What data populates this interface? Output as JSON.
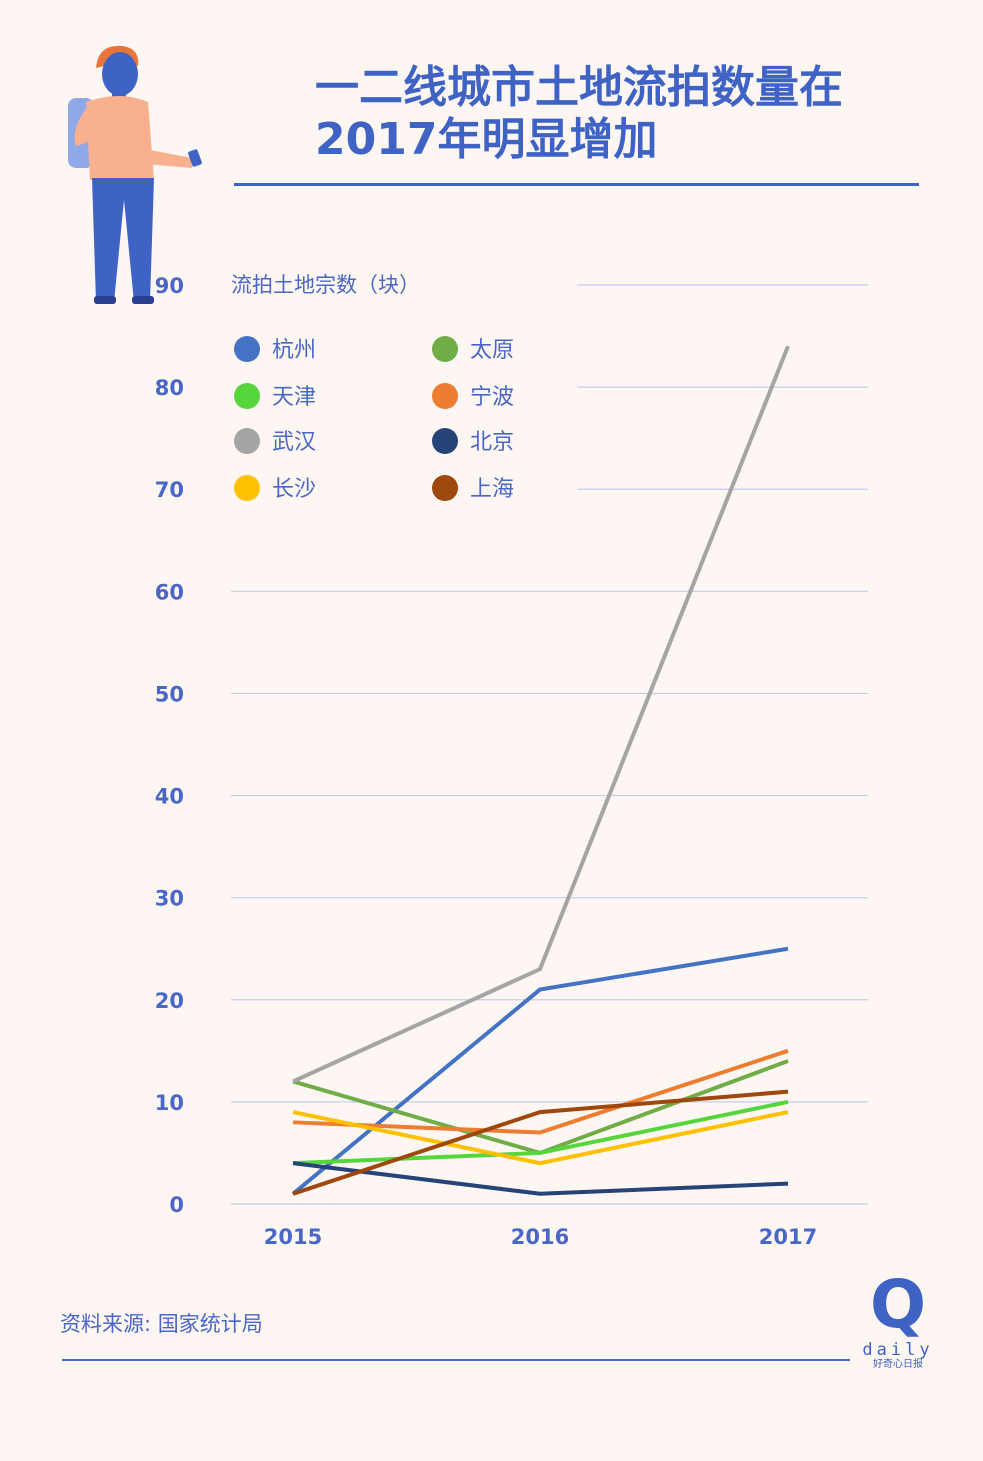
{
  "title": "一二线城市土地流拍数量在\n2017年明显增加",
  "source": "资料来源: 国家统计局",
  "logo": {
    "q": "Q",
    "word": "daily",
    "sub": "好奇心日报"
  },
  "chart_data": {
    "type": "line",
    "ylabel": "流拍土地宗数（块）",
    "x": [
      "2015",
      "2016",
      "2017"
    ],
    "ylim": [
      0,
      90
    ],
    "yticks": [
      0,
      10,
      20,
      30,
      40,
      50,
      60,
      70,
      80,
      90
    ],
    "grid": true,
    "legend_position": "top-left",
    "series": [
      {
        "name": "杭州",
        "color": "#4472c4",
        "values": [
          1,
          21,
          25
        ]
      },
      {
        "name": "太原",
        "color": "#70ad47",
        "values": [
          12,
          5,
          14
        ]
      },
      {
        "name": "天津",
        "color": "#56d63c",
        "values": [
          4,
          5,
          10
        ]
      },
      {
        "name": "宁波",
        "color": "#ed7d31",
        "values": [
          8,
          7,
          15
        ]
      },
      {
        "name": "武汉",
        "color": "#a5a5a5",
        "values": [
          12,
          23,
          84
        ]
      },
      {
        "name": "北京",
        "color": "#264478",
        "values": [
          4,
          1,
          2
        ]
      },
      {
        "name": "长沙",
        "color": "#ffc000",
        "values": [
          9,
          4,
          9
        ]
      },
      {
        "name": "上海",
        "color": "#9e480e",
        "values": [
          1,
          9,
          11
        ]
      }
    ]
  }
}
